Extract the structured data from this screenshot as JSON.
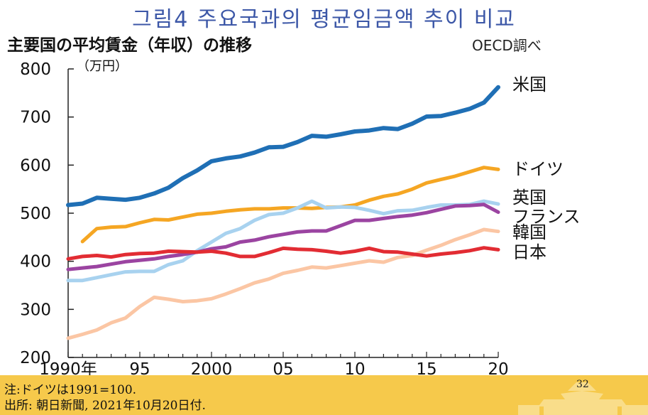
{
  "slide": {
    "title": "그림4 주요국과의 평균임금액 추이 비교",
    "page_number": "32"
  },
  "footer": {
    "note": "注:ドイツは1991=100.",
    "source": "出所: 朝日新聞, 2021年10月20日付."
  },
  "chart_data": {
    "type": "line",
    "title": "主要国の平均賃金（年収）の推移",
    "source_label": "OECD調べ",
    "ylabel": "（万円）",
    "ylim": [
      200,
      800
    ],
    "yticks": [
      200,
      300,
      400,
      500,
      600,
      700,
      800
    ],
    "xlim": [
      1990,
      2020
    ],
    "xticks": [
      {
        "value": 1990,
        "label": "1990年"
      },
      {
        "value": 1995,
        "label": "95"
      },
      {
        "value": 2000,
        "label": "2000"
      },
      {
        "value": 2005,
        "label": "05"
      },
      {
        "value": 2010,
        "label": "10"
      },
      {
        "value": 2015,
        "label": "15"
      },
      {
        "value": 2020,
        "label": "20"
      }
    ],
    "grid": false,
    "series": [
      {
        "name": "米国",
        "color": "#1f6fb5",
        "width": 6,
        "start": 1990,
        "values": [
          517,
          520,
          532,
          530,
          528,
          532,
          541,
          553,
          573,
          589,
          608,
          614,
          618,
          626,
          637,
          638,
          648,
          661,
          659,
          664,
          670,
          672,
          677,
          675,
          686,
          701,
          702,
          709,
          717,
          730,
          762
        ]
      },
      {
        "name": "ドイツ",
        "color": "#f5a623",
        "width": 5,
        "start": 1991,
        "values": [
          441,
          468,
          471,
          472,
          480,
          487,
          486,
          492,
          498,
          500,
          504,
          507,
          509,
          509,
          511,
          511,
          510,
          512,
          513,
          517,
          527,
          535,
          540,
          550,
          563,
          570,
          577,
          586,
          595,
          591
        ]
      },
      {
        "name": "英国",
        "color": "#a8d2ef",
        "width": 5,
        "start": 1990,
        "values": [
          360,
          360,
          366,
          372,
          378,
          379,
          379,
          393,
          401,
          422,
          440,
          458,
          468,
          485,
          497,
          500,
          511,
          525,
          511,
          513,
          512,
          506,
          499,
          505,
          506,
          512,
          517,
          517,
          518,
          525,
          519
        ]
      },
      {
        "name": "フランス",
        "color": "#9b44a1",
        "width": 5,
        "start": 1990,
        "values": [
          383,
          386,
          389,
          394,
          399,
          402,
          405,
          410,
          414,
          419,
          426,
          430,
          440,
          444,
          451,
          456,
          461,
          463,
          463,
          474,
          485,
          485,
          489,
          493,
          496,
          501,
          508,
          515,
          516,
          518,
          502
        ]
      },
      {
        "name": "韓国",
        "color": "#fbc6a4",
        "width": 5,
        "start": 1990,
        "values": [
          240,
          248,
          257,
          272,
          282,
          306,
          325,
          321,
          316,
          318,
          322,
          332,
          343,
          355,
          363,
          375,
          381,
          388,
          386,
          391,
          396,
          401,
          398,
          408,
          412,
          423,
          433,
          445,
          455,
          466,
          462
        ]
      },
      {
        "name": "日本",
        "color": "#e22c33",
        "width": 5,
        "start": 1990,
        "values": [
          405,
          410,
          412,
          409,
          414,
          416,
          417,
          421,
          420,
          419,
          421,
          417,
          410,
          410,
          418,
          427,
          425,
          424,
          421,
          417,
          421,
          427,
          420,
          419,
          415,
          411,
          415,
          418,
          422,
          428,
          424
        ]
      }
    ]
  }
}
